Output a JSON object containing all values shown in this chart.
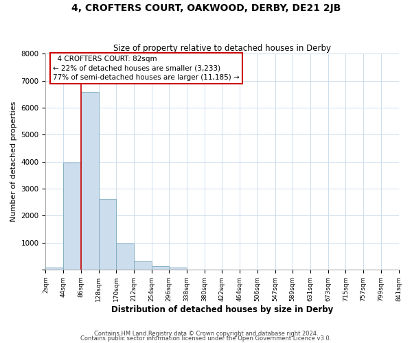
{
  "title": "4, CROFTERS COURT, OAKWOOD, DERBY, DE21 2JB",
  "subtitle": "Size of property relative to detached houses in Derby",
  "xlabel": "Distribution of detached houses by size in Derby",
  "ylabel": "Number of detached properties",
  "footnote1": "Contains HM Land Registry data © Crown copyright and database right 2024.",
  "footnote2": "Contains public sector information licensed under the Open Government Licence v3.0.",
  "bin_labels": [
    "2sqm",
    "44sqm",
    "86sqm",
    "128sqm",
    "170sqm",
    "212sqm",
    "254sqm",
    "296sqm",
    "338sqm",
    "380sqm",
    "422sqm",
    "464sqm",
    "506sqm",
    "547sqm",
    "589sqm",
    "631sqm",
    "673sqm",
    "715sqm",
    "757sqm",
    "799sqm",
    "841sqm"
  ],
  "bar_values": [
    70,
    3950,
    6580,
    2620,
    970,
    310,
    120,
    60,
    0,
    0,
    0,
    0,
    0,
    0,
    0,
    0,
    0,
    0,
    0,
    0
  ],
  "bar_color": "#ccdded",
  "bar_edge_color": "#7aaabb",
  "property_line_x": 86,
  "property_line_color": "#cc0000",
  "ylim": [
    0,
    8000
  ],
  "yticks": [
    0,
    1000,
    2000,
    3000,
    4000,
    5000,
    6000,
    7000,
    8000
  ],
  "annotation_title": "4 CROFTERS COURT: 82sqm",
  "annotation_line1": "← 22% of detached houses are smaller (3,233)",
  "annotation_line2": "77% of semi-detached houses are larger (11,185) →",
  "annotation_box_facecolor": "#ffffff",
  "annotation_box_edgecolor": "#cc0000",
  "bg_color": "#ffffff",
  "plot_bg_color": "#ffffff",
  "grid_color": "#ccddee"
}
